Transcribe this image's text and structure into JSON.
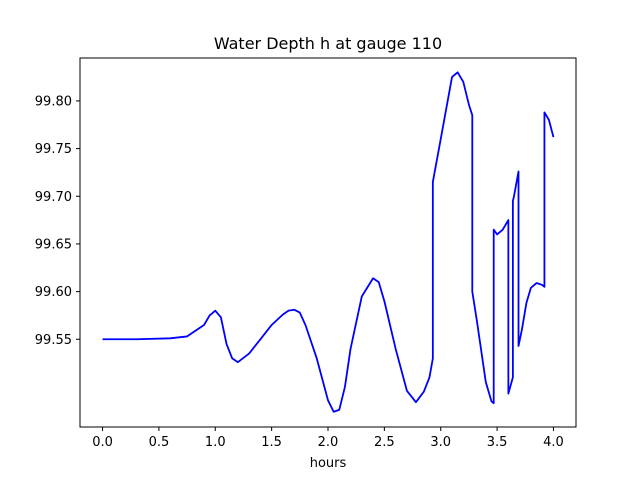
{
  "chart_data": {
    "type": "line",
    "title": "Water Depth h at gauge 110",
    "xlabel": "hours",
    "ylabel": "",
    "xlim": [
      -0.2,
      4.2
    ],
    "ylim": [
      99.458,
      99.845
    ],
    "x_ticks": [
      0.0,
      0.5,
      1.0,
      1.5,
      2.0,
      2.5,
      3.0,
      3.5,
      4.0
    ],
    "x_tick_labels": [
      "0.0",
      "0.5",
      "1.0",
      "1.5",
      "2.0",
      "2.5",
      "3.0",
      "3.5",
      "4.0"
    ],
    "y_ticks": [
      99.55,
      99.6,
      99.65,
      99.7,
      99.75,
      99.8
    ],
    "y_tick_labels": [
      "99.55",
      "99.60",
      "99.65",
      "99.70",
      "99.75",
      "99.80"
    ],
    "grid": false,
    "series": [
      {
        "color": "#0000ff",
        "x": [
          0.0,
          0.3,
          0.6,
          0.75,
          0.9,
          0.95,
          1.0,
          1.05,
          1.1,
          1.15,
          1.2,
          1.3,
          1.4,
          1.5,
          1.6,
          1.65,
          1.7,
          1.75,
          1.8,
          1.9,
          2.0,
          2.05,
          2.1,
          2.15,
          2.2,
          2.3,
          2.4,
          2.45,
          2.5,
          2.6,
          2.7,
          2.78,
          2.85,
          2.9,
          2.93,
          2.93,
          3.0,
          3.1,
          3.15,
          3.2,
          3.25,
          3.28,
          3.28,
          3.32,
          3.4,
          3.45,
          3.47,
          3.47,
          3.5,
          3.55,
          3.6,
          3.6,
          3.6,
          3.64,
          3.64,
          3.65,
          3.69,
          3.69,
          3.72,
          3.76,
          3.8,
          3.85,
          3.9,
          3.92,
          3.92,
          3.96,
          4.0
        ],
        "y": [
          99.55,
          99.55,
          99.551,
          99.553,
          99.565,
          99.575,
          99.58,
          99.573,
          99.545,
          99.53,
          99.526,
          99.535,
          99.55,
          99.565,
          99.576,
          99.58,
          99.581,
          99.578,
          99.565,
          99.53,
          99.486,
          99.474,
          99.476,
          99.5,
          99.54,
          99.595,
          99.614,
          99.61,
          99.59,
          99.54,
          99.496,
          99.484,
          99.495,
          99.51,
          99.53,
          99.715,
          99.76,
          99.825,
          99.83,
          99.82,
          99.796,
          99.785,
          99.6,
          99.57,
          99.505,
          99.485,
          99.483,
          99.665,
          99.66,
          99.665,
          99.675,
          99.66,
          99.493,
          99.51,
          99.695,
          99.7,
          99.726,
          99.543,
          99.56,
          99.588,
          99.604,
          99.609,
          99.607,
          99.605,
          99.788,
          99.78,
          99.762
        ]
      }
    ]
  }
}
